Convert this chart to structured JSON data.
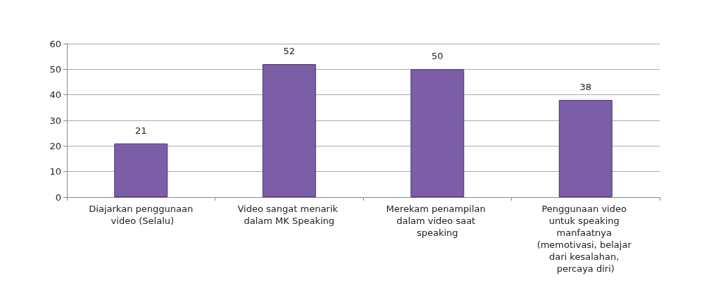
{
  "chart_data": {
    "type": "bar",
    "categories": [
      "Diajarkan penggunaan video (Selalu)",
      "Video sangat menarik dalam MK Speaking",
      "Merekam penampilan dalam video saat speaking",
      "Penggunaan video untuk speaking manfaatnya (memotivasi, belajar dari kesalahan, percaya diri)"
    ],
    "values": [
      21,
      52,
      50,
      38
    ],
    "color": "#7b5ea7",
    "ylim": [
      0,
      60
    ],
    "yticks": [
      0,
      10,
      20,
      30,
      40,
      50,
      60
    ],
    "grid": "y",
    "data_labels": true
  }
}
